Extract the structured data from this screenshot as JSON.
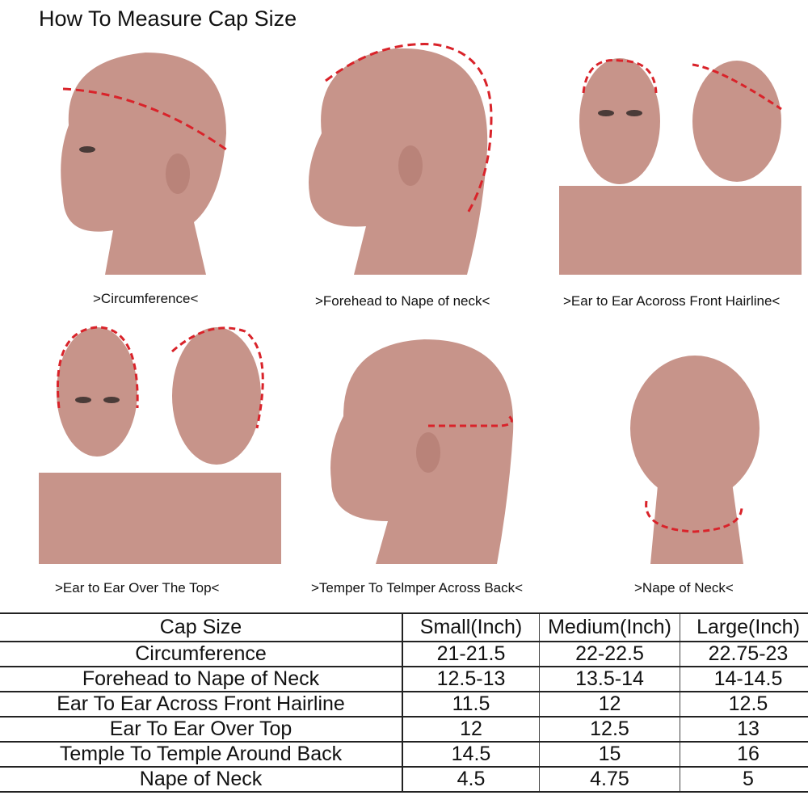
{
  "title": "How To Measure Cap Size",
  "accent_color": "#d9232a",
  "photos": [
    {
      "caption": ">Circumference<",
      "icon": "mannequin-side-circumference"
    },
    {
      "caption": ">Forehead to Nape of neck<",
      "icon": "mannequin-side-forehead-nape"
    },
    {
      "caption": ">Ear to Ear Acoross Front Hairline<",
      "icon": "mannequin-front-and-side-hairline"
    },
    {
      "caption": ">Ear to Ear Over The  Top<",
      "icon": "mannequin-front-and-side-over-top"
    },
    {
      "caption": ">Temper To Telmper Across Back<",
      "icon": "mannequin-side-temple-back"
    },
    {
      "caption": ">Nape of Neck<",
      "icon": "mannequin-back-nape"
    }
  ],
  "table": {
    "headers": [
      "Cap Size",
      "Small(Inch)",
      "Medium(Inch)",
      "Large(Inch)"
    ],
    "rows": [
      [
        "Circumference",
        "21-21.5",
        "22-22.5",
        "22.75-23"
      ],
      [
        "Forehead to Nape of Neck",
        "12.5-13",
        "13.5-14",
        "14-14.5"
      ],
      [
        "Ear To Ear Across Front Hairline",
        "11.5",
        "12",
        "12.5"
      ],
      [
        "Ear To Ear Over Top",
        "12",
        "12.5",
        "13"
      ],
      [
        "Temple To Temple Around Back",
        "14.5",
        "15",
        "16"
      ],
      [
        "Nape of Neck",
        "4.5",
        "4.75",
        "5"
      ]
    ]
  }
}
